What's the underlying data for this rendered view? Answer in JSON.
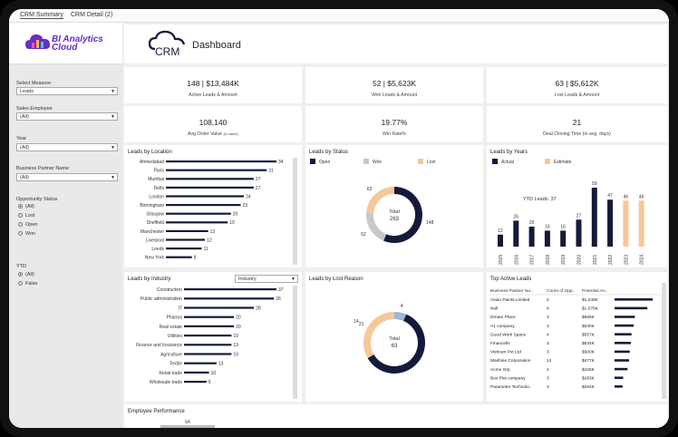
{
  "tabs": [
    "CRM Summary",
    "CRM Detail (2)"
  ],
  "logo": {
    "line1": "BI Analytics",
    "line2": "Cloud"
  },
  "header": {
    "brand": "CRM",
    "title": "Dashboard"
  },
  "filters": {
    "measure_label": "Select Measure",
    "measure_value": "Leads",
    "employee_label": "Sales Employee",
    "employee_value": "(All)",
    "year_label": "Year",
    "year_value": "(All)",
    "partner_label": "Business Partner Name",
    "partner_value": "(All)",
    "status_label": "Opportunity Status",
    "status_options": [
      "(All)",
      "Lost",
      "Open",
      "Won"
    ],
    "ytd_label": "YTD",
    "ytd_options": [
      "(All)",
      "False"
    ]
  },
  "kpis": {
    "active_value": "148 | $13,484K",
    "active_label": "Active Leads & Amount",
    "won_value": "52 | $5,623K",
    "won_label": "Won Leads & Amount",
    "lost_value": "63 | $5,612K",
    "lost_label": "Lost Leads & Amount",
    "order_value": "108,140",
    "order_label": "Avg Order Value",
    "order_suffix": "(in value)",
    "winrate_value": "19.77%",
    "winrate_label": "Win Rate%",
    "closing_value": "21",
    "closing_label": "Deal Closing Time (in avg. days)"
  },
  "colors": {
    "navy": "#141a3a",
    "grey": "#c8c8c8",
    "peach": "#f5c89a",
    "bluegrey": "#9fb6d9",
    "purple": "#6a2cc8"
  },
  "chart_data": [
    {
      "type": "bar",
      "title": "Leads by Location",
      "categories": [
        "Ahmedabad",
        "Paris",
        "Mumbai",
        "Delhi",
        "London",
        "Birmingham",
        "Glasgow",
        "Sheffield",
        "Manchester",
        "Liverpool",
        "Leeds",
        "New York"
      ],
      "values": [
        34,
        31,
        27,
        27,
        24,
        23,
        20,
        19,
        13,
        12,
        11,
        8
      ],
      "xlim": [
        0,
        34
      ]
    },
    {
      "type": "pie",
      "title": "Leads by Status",
      "legend": [
        "Open",
        "Won",
        "Lost"
      ],
      "values": [
        148,
        52,
        63
      ],
      "center_label": "Total",
      "center_value": "263"
    },
    {
      "type": "bar",
      "title": "Leads by Years",
      "legend": [
        "Actual",
        "Estimate"
      ],
      "annotation": "YTD Leads: 37",
      "categories": [
        "2015",
        "2016",
        "2017",
        "2018",
        "2019",
        "2020",
        "2021",
        "2022",
        "2023",
        "2024"
      ],
      "values": [
        12,
        26,
        20,
        16,
        16,
        27,
        59,
        47,
        46,
        46
      ],
      "estimate": [
        false,
        false,
        false,
        false,
        false,
        false,
        false,
        false,
        true,
        true
      ],
      "ylim": [
        0,
        59
      ]
    },
    {
      "type": "bar",
      "title": "Leads by Industry",
      "dropdown": "Industry",
      "categories": [
        "Construction",
        "Public administration",
        "IT",
        "Pharma",
        "Real estate",
        "Utilities",
        "Finance and Insurance",
        "Agriculture",
        "Textile",
        "Retail trade",
        "Wholesale trade"
      ],
      "values": [
        37,
        36,
        28,
        20,
        20,
        19,
        19,
        19,
        13,
        10,
        9
      ],
      "xlim": [
        0,
        37
      ]
    },
    {
      "type": "pie",
      "title": "Leads by Lost Reason",
      "values": [
        4,
        38,
        21
      ],
      "value_labels": [
        "4",
        "",
        "21"
      ],
      "extra_label": "14",
      "center_label": "Total",
      "center_value": "63"
    },
    {
      "type": "table",
      "title": "Top Active Leads",
      "columns": [
        "Business Partner Na..",
        "Count of Opp..",
        "Potential An.."
      ],
      "rows": [
        [
          "Asian Paints Limited",
          "2",
          "$1,249K"
        ],
        [
          "Null",
          "4",
          "$1,076K"
        ],
        [
          "Dream Place",
          "3",
          "$666K"
        ],
        [
          "A1 company",
          "3",
          "$630K"
        ],
        [
          "Good Work Space",
          "4",
          "$557K"
        ],
        [
          "Financells",
          "3",
          "$534K"
        ],
        [
          "Vishram Pvt Ltd",
          "3",
          "$500K"
        ],
        [
          "Mashine Corporation",
          "12",
          "$477K"
        ],
        [
          "Acme Grp",
          "2",
          "$426K"
        ],
        [
          "Box Plot company",
          "3",
          "$283K"
        ],
        [
          "Parameter Technolo..",
          "3",
          "$264K"
        ]
      ],
      "bar_values": [
        1249,
        1076,
        666,
        630,
        557,
        534,
        500,
        477,
        426,
        283,
        264
      ]
    },
    {
      "type": "bar",
      "title": "Employee Performance",
      "values": [
        64
      ]
    }
  ]
}
